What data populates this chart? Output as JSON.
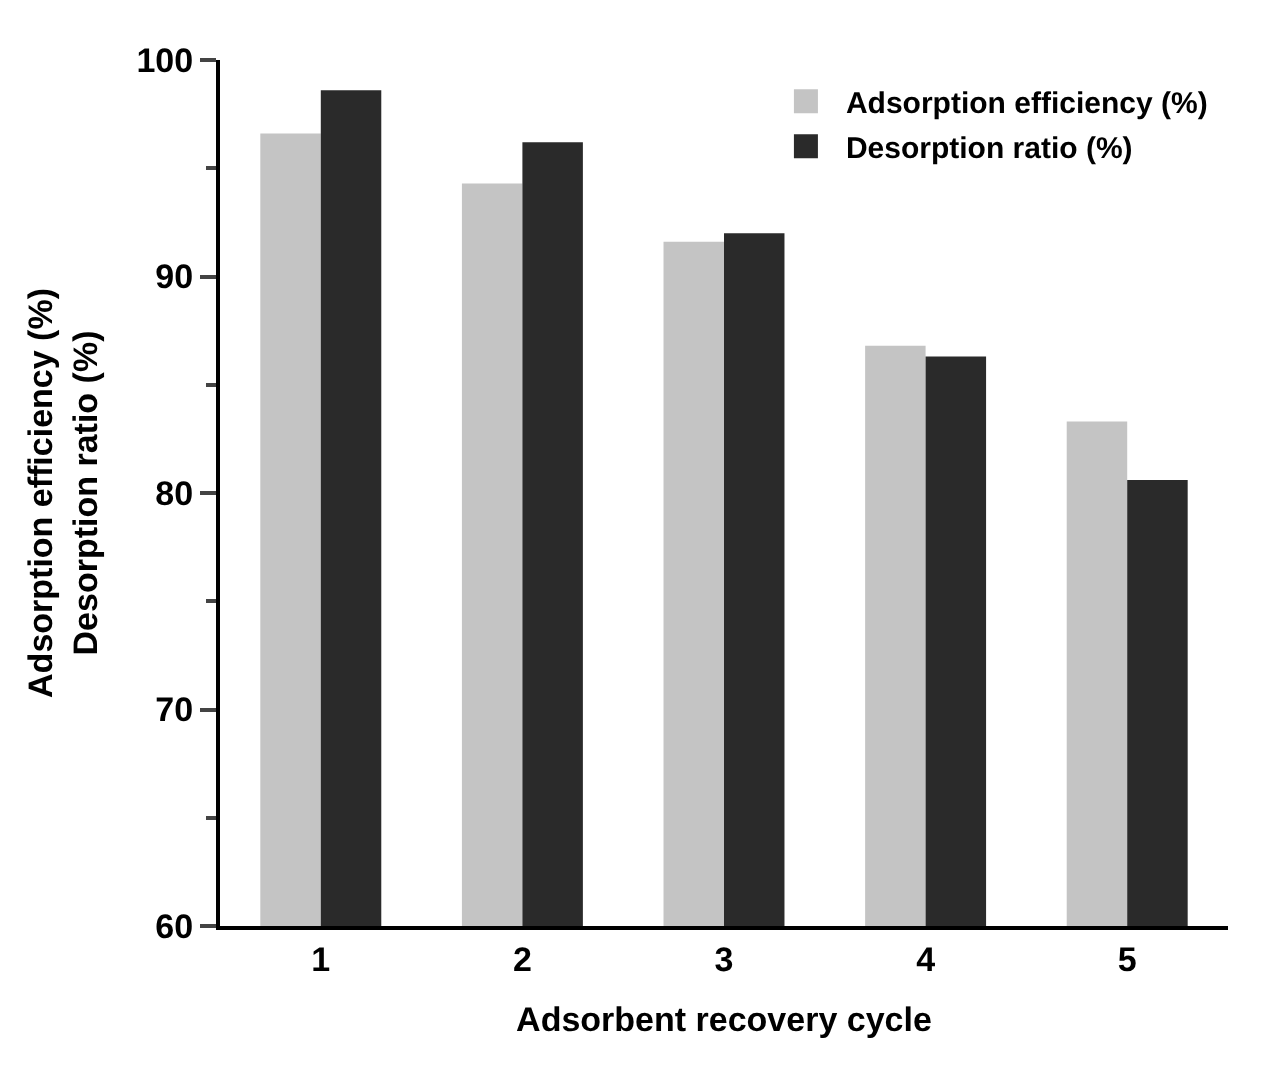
{
  "chart_data": {
    "type": "bar",
    "xlabel": "Adsorbent recovery cycle",
    "ylabel": "Adsorption efficiency (%)\nDesorption ratio (%)",
    "categories": [
      "1",
      "2",
      "3",
      "4",
      "5"
    ],
    "series": [
      {
        "name": "Adsorption efficiency (%)",
        "color": "#c4c4c4",
        "values": [
          96.6,
          94.3,
          91.6,
          86.8,
          83.3
        ]
      },
      {
        "name": "Desorption ratio (%)",
        "color": "#2a2a2a",
        "values": [
          98.6,
          96.2,
          92.0,
          86.3,
          80.6
        ]
      }
    ],
    "ylim": [
      60,
      100
    ],
    "yticks": [
      60,
      70,
      80,
      90,
      100
    ],
    "legend": "top right"
  }
}
